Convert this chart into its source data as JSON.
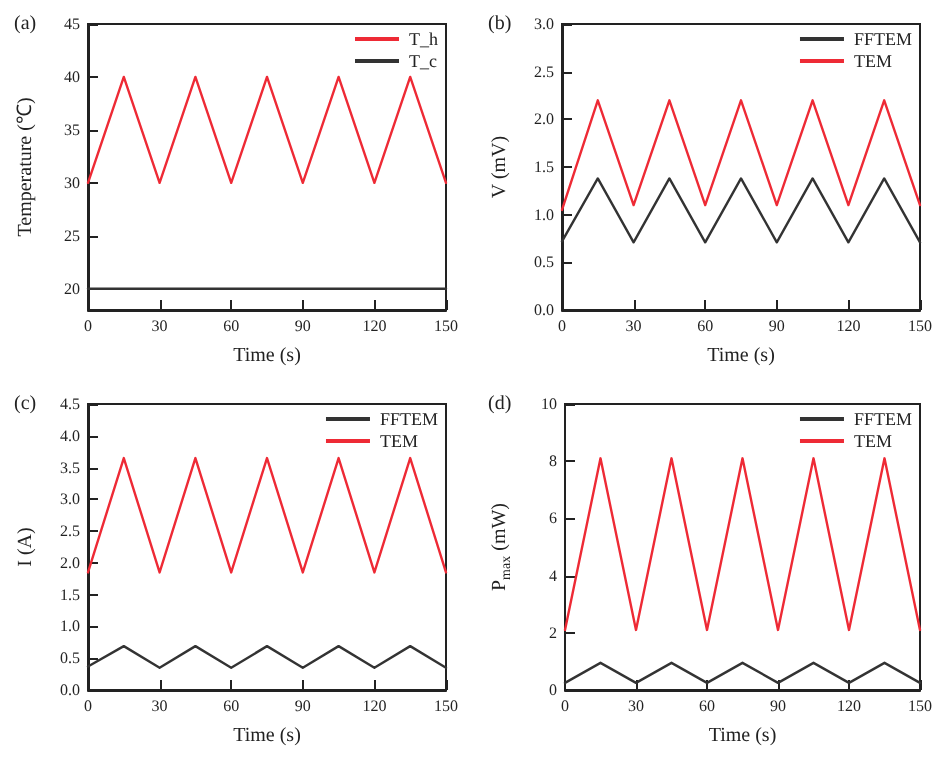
{
  "chart_data": [
    {
      "type": "line",
      "title": "(a)",
      "xlabel": "Time (s)",
      "ylabel": "Temperature (℃)",
      "x": [
        0,
        15,
        30,
        45,
        60,
        75,
        90,
        105,
        120,
        135,
        150
      ],
      "xlim": [
        0,
        150
      ],
      "xticks": [
        0,
        30,
        60,
        90,
        120,
        150
      ],
      "ylim": [
        18,
        45
      ],
      "yticks": [
        20,
        25,
        30,
        35,
        40,
        45
      ],
      "grid": false,
      "legend": "top right",
      "marker": "none",
      "line_style": "solid",
      "series": [
        {
          "name": "T_h",
          "color": "#ee2a35",
          "values": [
            30,
            40,
            30,
            40,
            30,
            40,
            30,
            40,
            30,
            40,
            30
          ]
        },
        {
          "name": "T_c",
          "color": "#333333",
          "values": [
            20,
            20,
            20,
            20,
            20,
            20,
            20,
            20,
            20,
            20,
            20
          ]
        }
      ]
    },
    {
      "type": "line",
      "title": "(b)",
      "xlabel": "Time (s)",
      "ylabel": "V (mV)",
      "x": [
        0,
        15,
        30,
        45,
        60,
        75,
        90,
        105,
        120,
        135,
        150
      ],
      "xlim": [
        0,
        150
      ],
      "xticks": [
        0,
        30,
        60,
        90,
        120,
        150
      ],
      "ylim": [
        0,
        3
      ],
      "yticks": [
        {
          "value": 0,
          "label": "0.0"
        },
        0.5,
        {
          "value": 1,
          "label": "1.0"
        },
        1.5,
        {
          "value": 2,
          "label": "2.0"
        },
        2.5,
        {
          "value": 3,
          "label": "3.0"
        }
      ],
      "grid": false,
      "legend": "top right",
      "marker": "none",
      "line_style": "solid",
      "series": [
        {
          "name": "FFTEM",
          "color": "#333333",
          "values": [
            0.72,
            1.38,
            0.71,
            1.38,
            0.71,
            1.38,
            0.71,
            1.38,
            0.71,
            1.38,
            0.71
          ]
        },
        {
          "name": "TEM",
          "color": "#ee2a35",
          "values": [
            1.05,
            2.2,
            1.1,
            2.2,
            1.1,
            2.2,
            1.1,
            2.2,
            1.1,
            2.2,
            1.1
          ]
        }
      ]
    },
    {
      "type": "line",
      "title": "(c)",
      "xlabel": "Time (s)",
      "ylabel": "I (A)",
      "x": [
        0,
        15,
        30,
        45,
        60,
        75,
        90,
        105,
        120,
        135,
        150
      ],
      "xlim": [
        0,
        150
      ],
      "xticks": [
        0,
        30,
        60,
        90,
        120,
        150
      ],
      "ylim": [
        0,
        4.5
      ],
      "yticks": [
        {
          "value": 0,
          "label": "0.0"
        },
        0.5,
        {
          "value": 1,
          "label": "1.0"
        },
        1.5,
        {
          "value": 2,
          "label": "2.0"
        },
        2.5,
        {
          "value": 3,
          "label": "3.0"
        },
        3.5,
        {
          "value": 4,
          "label": "4.0"
        },
        4.5
      ],
      "grid": false,
      "legend": "top right",
      "marker": "none",
      "line_style": "solid",
      "series": [
        {
          "name": "FFTEM",
          "color": "#333333",
          "values": [
            0.37,
            0.69,
            0.35,
            0.69,
            0.35,
            0.69,
            0.35,
            0.69,
            0.35,
            0.69,
            0.35
          ]
        },
        {
          "name": "TEM",
          "color": "#ee2a35",
          "values": [
            1.85,
            3.65,
            1.85,
            3.65,
            1.85,
            3.65,
            1.85,
            3.65,
            1.85,
            3.65,
            1.85
          ]
        }
      ]
    },
    {
      "type": "line",
      "title": "(d)",
      "xlabel": "Time (s)",
      "ylabel": "P$_{max}$ (mW)",
      "x": [
        0,
        15,
        30,
        45,
        60,
        75,
        90,
        105,
        120,
        135,
        150
      ],
      "xlim": [
        0,
        150
      ],
      "xticks": [
        0,
        30,
        60,
        90,
        120,
        150
      ],
      "ylim": [
        0,
        10
      ],
      "yticks": [
        0,
        2,
        4,
        6,
        8,
        10
      ],
      "grid": false,
      "legend": "top right",
      "marker": "none",
      "line_style": "solid",
      "series": [
        {
          "name": "FFTEM",
          "color": "#333333",
          "values": [
            0.25,
            0.95,
            0.25,
            0.95,
            0.25,
            0.95,
            0.25,
            0.95,
            0.25,
            0.95,
            0.25
          ]
        },
        {
          "name": "TEM",
          "color": "#ee2a35",
          "values": [
            2.1,
            8.1,
            2.1,
            8.1,
            2.1,
            8.1,
            2.1,
            8.1,
            2.1,
            8.1,
            2.1
          ]
        }
      ]
    }
  ]
}
